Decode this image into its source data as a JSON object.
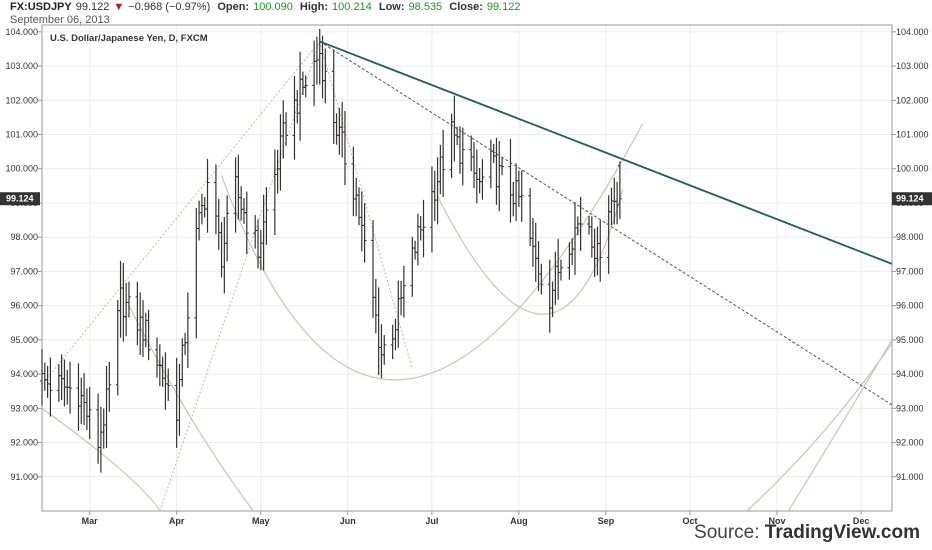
{
  "header": {
    "symbol": "FX:USDJPY",
    "last": "99.122",
    "arrow": "▼",
    "change": "−0.968 (−0.97%)",
    "open_label": "Open:",
    "open": "100.090",
    "high_label": "High:",
    "high": "100.214",
    "low_label": "Low:",
    "low": "98.535",
    "close_label": "Close:",
    "close": "99.122",
    "date": "September 06, 2013"
  },
  "chart_title": "U.S. Dollar/Japanese Yen, D, FXCM",
  "last_price_tag": "99.124",
  "source": {
    "prefix": "Source:",
    "brand": "TradingView.com"
  },
  "colors": {
    "trendline": "#1f5f66",
    "bars": "#333333",
    "arcs": "#c9c2b8",
    "fan": "#c9b98f",
    "dashed_trend": "#555555",
    "price_tag_bg": "#333333"
  },
  "chart_data": {
    "type": "ohlc",
    "title": "U.S. Dollar/Japanese Yen, D, FXCM",
    "ylim": [
      90.0,
      104.2
    ],
    "y_ticks": [
      "91.000",
      "92.000",
      "93.000",
      "94.000",
      "95.000",
      "96.000",
      "97.000",
      "98.000",
      "99.000",
      "100.000",
      "101.000",
      "102.000",
      "103.000",
      "104.000"
    ],
    "x_ticks": [
      "Mar",
      "Apr",
      "May",
      "Jun",
      "Jul",
      "Aug",
      "Sep",
      "Oct",
      "Nov",
      "Dec"
    ],
    "x_tick_dates": [
      "2013-03-01",
      "2013-04-01",
      "2013-05-01",
      "2013-06-01",
      "2013-07-01",
      "2013-08-01",
      "2013-09-01",
      "2013-10-01",
      "2013-11-01",
      "2013-12-01"
    ],
    "xlim": [
      "2013-02-12",
      "2013-12-12"
    ],
    "waypoints": [
      [
        "2013-02-12",
        93.8
      ],
      [
        "2013-02-25",
        93.5
      ],
      [
        "2013-03-04",
        92.0
      ],
      [
        "2013-03-08",
        93.5
      ],
      [
        "2013-03-12",
        96.2
      ],
      [
        "2013-03-21",
        95.2
      ],
      [
        "2013-04-01",
        93.0
      ],
      [
        "2013-04-08",
        98.0
      ],
      [
        "2013-04-12",
        99.6
      ],
      [
        "2013-04-17",
        97.5
      ],
      [
        "2013-04-22",
        99.4
      ],
      [
        "2013-04-30",
        97.6
      ],
      [
        "2013-05-10",
        101.3
      ],
      [
        "2013-05-22",
        103.4
      ],
      [
        "2013-05-27",
        101.5
      ],
      [
        "2013-06-04",
        99.2
      ],
      [
        "2013-06-13",
        94.6
      ],
      [
        "2013-06-18",
        95.5
      ],
      [
        "2013-06-26",
        98.0
      ],
      [
        "2013-07-08",
        101.0
      ],
      [
        "2013-07-18",
        99.5
      ],
      [
        "2013-07-22",
        100.1
      ],
      [
        "2013-08-02",
        99.0
      ],
      [
        "2013-08-06",
        97.5
      ],
      [
        "2013-08-12",
        96.3
      ],
      [
        "2013-08-18",
        97.8
      ],
      [
        "2013-08-25",
        98.8
      ],
      [
        "2013-08-29",
        97.4
      ],
      [
        "2013-09-02",
        99.0
      ],
      [
        "2013-09-06",
        99.12
      ]
    ],
    "last_bar": {
      "date": "2013-09-06",
      "open": 100.09,
      "high": 100.214,
      "low": 98.535,
      "close": 99.122
    },
    "trendline": {
      "from": [
        "2013-05-22",
        103.72
      ],
      "to": [
        "2013-12-12",
        97.22
      ]
    },
    "dashed_trendline": {
      "from": [
        "2013-05-22",
        103.72
      ],
      "to": [
        "2013-12-12",
        93.1
      ]
    },
    "fan_lines": [
      {
        "from": [
          "2013-02-12",
          93.7
        ],
        "to": [
          "2013-05-22",
          103.72
        ]
      },
      {
        "from": [
          "2013-03-26",
          90.0
        ],
        "to": [
          "2013-05-22",
          103.72
        ]
      },
      {
        "from": [
          "2013-05-22",
          103.72
        ],
        "to": [
          "2013-06-24",
          94.15
        ]
      }
    ],
    "arcs": [
      {
        "from": [
          "2013-04-17",
          99.8
        ],
        "mid": [
          "2013-06-22",
          93.85
        ],
        "to": [
          "2013-09-14",
          101.3
        ]
      },
      {
        "from": [
          "2013-07-03",
          99.2
        ],
        "mid": [
          "2013-08-10",
          95.75
        ],
        "to": [
          "2013-09-07",
          99.4
        ]
      },
      {
        "from": [
          "2013-02-12",
          93.0
        ],
        "mid": [
          "2013-03-20",
          90.6
        ],
        "to": [
          "2013-03-28",
          89.3
        ]
      },
      {
        "from": [
          "2013-03-15",
          96.0
        ],
        "mid": [
          "2013-04-10",
          92.2
        ],
        "to": [
          "2013-05-06",
          89.2
        ]
      },
      {
        "from": [
          "2013-05-18",
          89.2
        ],
        "mid": [
          "2013-06-05",
          89.9
        ],
        "to": [
          "2013-06-22",
          89.2
        ]
      },
      {
        "from": [
          "2013-09-02",
          89.2
        ],
        "mid": [
          "2013-09-14",
          89.9
        ],
        "to": [
          "2013-09-24",
          89.2
        ]
      },
      {
        "from": [
          "2013-10-10",
          89.2
        ],
        "mid": [
          "2013-11-12",
          91.8
        ],
        "to": [
          "2013-12-12",
          94.9
        ]
      },
      {
        "from": [
          "2013-10-30",
          89.2
        ],
        "mid": [
          "2013-11-20",
          92.0
        ],
        "to": [
          "2013-12-12",
          95.0
        ]
      }
    ],
    "last_price": 99.124,
    "grid": true
  }
}
